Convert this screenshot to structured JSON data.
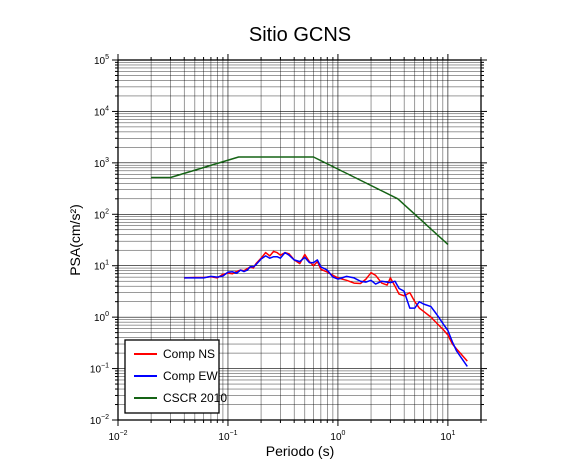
{
  "chart_data": {
    "type": "line",
    "title": "Sitio GCNS",
    "xlabel": "Periodo (s)",
    "ylabel": "PSA(cm/s²)",
    "x_scale": "log",
    "y_scale": "log",
    "xlim": [
      0.01,
      20
    ],
    "ylim": [
      0.01,
      100000
    ],
    "grid": true,
    "legend_position": "bottom-left",
    "x_ticks": [
      {
        "value": 0.01,
        "base": "10",
        "exp": "−2"
      },
      {
        "value": 0.1,
        "base": "10",
        "exp": "−1"
      },
      {
        "value": 1,
        "base": "10",
        "exp": "0"
      },
      {
        "value": 10,
        "base": "10",
        "exp": "1"
      }
    ],
    "y_ticks": [
      {
        "value": 0.01,
        "base": "10",
        "exp": "−2"
      },
      {
        "value": 0.1,
        "base": "10",
        "exp": "−1"
      },
      {
        "value": 1,
        "base": "10",
        "exp": "0"
      },
      {
        "value": 10,
        "base": "10",
        "exp": "1"
      },
      {
        "value": 100,
        "base": "10",
        "exp": "2"
      },
      {
        "value": 1000,
        "base": "10",
        "exp": "3"
      },
      {
        "value": 10000,
        "base": "10",
        "exp": "4"
      },
      {
        "value": 100000,
        "base": "10",
        "exp": "5"
      }
    ],
    "series": [
      {
        "name": "Comp NS",
        "color": "#ff0000",
        "points": [
          [
            0.04,
            5.8
          ],
          [
            0.05,
            5.9
          ],
          [
            0.06,
            5.9
          ],
          [
            0.07,
            6.1
          ],
          [
            0.08,
            5.8
          ],
          [
            0.09,
            6.8
          ],
          [
            0.1,
            7.2
          ],
          [
            0.11,
            7.0
          ],
          [
            0.12,
            7.8
          ],
          [
            0.13,
            8.2
          ],
          [
            0.14,
            8.0
          ],
          [
            0.15,
            8.8
          ],
          [
            0.16,
            9.5
          ],
          [
            0.17,
            9.0
          ],
          [
            0.18,
            11.0
          ],
          [
            0.2,
            14.0
          ],
          [
            0.22,
            18.0
          ],
          [
            0.24,
            15.5
          ],
          [
            0.26,
            19.0
          ],
          [
            0.28,
            18.0
          ],
          [
            0.3,
            16.0
          ],
          [
            0.33,
            18.0
          ],
          [
            0.36,
            17.0
          ],
          [
            0.4,
            13.0
          ],
          [
            0.45,
            11.0
          ],
          [
            0.5,
            16.5
          ],
          [
            0.55,
            12.0
          ],
          [
            0.6,
            10.0
          ],
          [
            0.65,
            12.0
          ],
          [
            0.7,
            8.5
          ],
          [
            0.8,
            7.5
          ],
          [
            0.9,
            6.5
          ],
          [
            1.0,
            5.8
          ],
          [
            1.2,
            5.2
          ],
          [
            1.4,
            4.6
          ],
          [
            1.6,
            4.5
          ],
          [
            1.8,
            5.5
          ],
          [
            2.0,
            7.3
          ],
          [
            2.2,
            6.5
          ],
          [
            2.5,
            4.6
          ],
          [
            2.8,
            4.2
          ],
          [
            3.0,
            5.8
          ],
          [
            3.3,
            4.0
          ],
          [
            3.6,
            2.8
          ],
          [
            4.0,
            2.6
          ],
          [
            4.5,
            3.0
          ],
          [
            5.0,
            2.0
          ],
          [
            5.5,
            1.5
          ],
          [
            6.0,
            1.3
          ],
          [
            7.0,
            1.0
          ],
          [
            8.0,
            0.75
          ],
          [
            9.0,
            0.58
          ],
          [
            10.0,
            0.45
          ],
          [
            11.0,
            0.3
          ],
          [
            12.0,
            0.24
          ],
          [
            15.0,
            0.14
          ]
        ]
      },
      {
        "name": "Comp EW",
        "color": "#0000ff",
        "points": [
          [
            0.04,
            5.8
          ],
          [
            0.05,
            5.8
          ],
          [
            0.06,
            5.8
          ],
          [
            0.07,
            6.2
          ],
          [
            0.08,
            6.0
          ],
          [
            0.09,
            6.3
          ],
          [
            0.1,
            7.5
          ],
          [
            0.11,
            7.6
          ],
          [
            0.12,
            7.2
          ],
          [
            0.13,
            8.2
          ],
          [
            0.14,
            7.7
          ],
          [
            0.15,
            8.2
          ],
          [
            0.16,
            9.6
          ],
          [
            0.17,
            9.5
          ],
          [
            0.18,
            10.5
          ],
          [
            0.2,
            13.5
          ],
          [
            0.22,
            15.5
          ],
          [
            0.24,
            14.0
          ],
          [
            0.26,
            15.0
          ],
          [
            0.28,
            15.0
          ],
          [
            0.3,
            14.0
          ],
          [
            0.33,
            18.0
          ],
          [
            0.36,
            16.0
          ],
          [
            0.4,
            13.0
          ],
          [
            0.45,
            12.0
          ],
          [
            0.5,
            14.5
          ],
          [
            0.55,
            11.5
          ],
          [
            0.6,
            11.5
          ],
          [
            0.65,
            13.0
          ],
          [
            0.7,
            9.5
          ],
          [
            0.8,
            8.2
          ],
          [
            0.9,
            6.0
          ],
          [
            1.0,
            5.5
          ],
          [
            1.2,
            6.2
          ],
          [
            1.4,
            5.8
          ],
          [
            1.6,
            5.0
          ],
          [
            1.8,
            4.8
          ],
          [
            2.0,
            5.2
          ],
          [
            2.2,
            4.4
          ],
          [
            2.5,
            5.0
          ],
          [
            2.8,
            4.8
          ],
          [
            3.0,
            4.7
          ],
          [
            3.3,
            5.0
          ],
          [
            3.6,
            3.6
          ],
          [
            4.0,
            3.2
          ],
          [
            4.5,
            1.5
          ],
          [
            5.0,
            1.5
          ],
          [
            5.5,
            2.0
          ],
          [
            6.0,
            1.8
          ],
          [
            7.0,
            1.6
          ],
          [
            8.0,
            1.1
          ],
          [
            9.0,
            0.75
          ],
          [
            10.0,
            0.55
          ],
          [
            11.0,
            0.33
          ],
          [
            12.0,
            0.22
          ],
          [
            15.0,
            0.11
          ]
        ]
      },
      {
        "name": "CSCR 2010",
        "color": "#156315",
        "points": [
          [
            0.02,
            520
          ],
          [
            0.03,
            520
          ],
          [
            0.125,
            1300
          ],
          [
            0.6,
            1300
          ],
          [
            3.5,
            200
          ],
          [
            10.0,
            26
          ]
        ]
      }
    ]
  }
}
